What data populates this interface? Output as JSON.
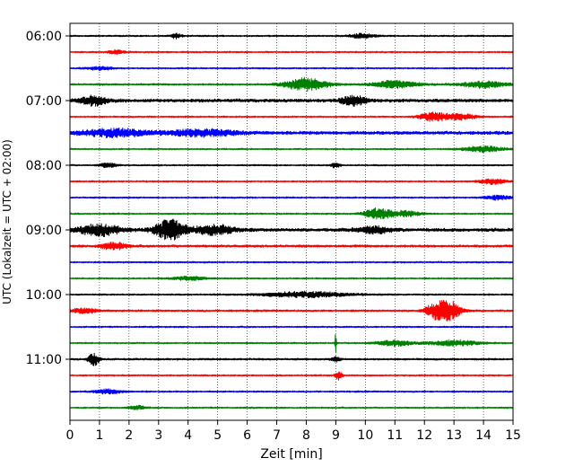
{
  "chart_data": {
    "type": "line",
    "title": "",
    "xlabel": "Zeit  [min]",
    "ylabel": "UTC (Lokalzeit = UTC + 02:00)",
    "xlim": [
      0,
      15
    ],
    "x_ticks": [
      0,
      1,
      2,
      3,
      4,
      5,
      6,
      7,
      8,
      9,
      10,
      11,
      12,
      13,
      14,
      15
    ],
    "x_tick_labels": [
      "0",
      "1",
      "2",
      "3",
      "4",
      "5",
      "6",
      "7",
      "8",
      "9",
      "10",
      "11",
      "12",
      "13",
      "14",
      "15"
    ],
    "y_tick_labels": [
      "06:00",
      "07:00",
      "08:00",
      "09:00",
      "10:00",
      "11:00"
    ],
    "y_tick_trace_index": [
      0,
      4,
      8,
      12,
      16,
      20
    ],
    "grid": "vertical-dotted",
    "trace_minutes": 15,
    "colors": [
      "#000000",
      "#ff0000",
      "#0000ff",
      "#008000"
    ],
    "series": [
      {
        "start": "06:00",
        "color": "#000000",
        "noise": 1.0,
        "events": [
          {
            "t": 3.6,
            "amp": 3,
            "w": 0.12
          },
          {
            "t": 9.9,
            "amp": 2.5,
            "w": 0.3
          }
        ]
      },
      {
        "start": "06:15",
        "color": "#ff0000",
        "noise": 1.0,
        "events": [
          {
            "t": 1.6,
            "amp": 2,
            "w": 0.2
          }
        ]
      },
      {
        "start": "06:30",
        "color": "#0000ff",
        "noise": 1.0,
        "events": [
          {
            "t": 1.0,
            "amp": 1.8,
            "w": 0.3
          }
        ]
      },
      {
        "start": "06:45",
        "color": "#008000",
        "noise": 1.2,
        "events": [
          {
            "t": 8.0,
            "amp": 7,
            "w": 0.5
          },
          {
            "t": 11.0,
            "amp": 4,
            "w": 0.5
          },
          {
            "t": 14.0,
            "amp": 3.5,
            "w": 0.5
          }
        ]
      },
      {
        "start": "07:00",
        "color": "#000000",
        "noise": 2.0,
        "events": [
          {
            "t": 0.8,
            "amp": 5,
            "w": 0.3
          },
          {
            "t": 9.6,
            "amp": 5,
            "w": 0.3
          }
        ]
      },
      {
        "start": "07:15",
        "color": "#ff0000",
        "noise": 1.0,
        "events": [
          {
            "t": 12.3,
            "amp": 5,
            "w": 0.3
          },
          {
            "t": 13.2,
            "amp": 3,
            "w": 0.4
          }
        ]
      },
      {
        "start": "07:30",
        "color": "#0000ff",
        "noise": 2.0,
        "events": [
          {
            "t": 1.5,
            "amp": 4,
            "w": 0.8
          },
          {
            "t": 4.5,
            "amp": 3.5,
            "w": 0.8
          }
        ]
      },
      {
        "start": "07:45",
        "color": "#008000",
        "noise": 1.0,
        "events": [
          {
            "t": 14.0,
            "amp": 3,
            "w": 0.5
          }
        ]
      },
      {
        "start": "08:00",
        "color": "#000000",
        "noise": 1.0,
        "events": [
          {
            "t": 1.3,
            "amp": 2.5,
            "w": 0.2
          },
          {
            "t": 9.0,
            "amp": 3,
            "w": 0.1
          }
        ]
      },
      {
        "start": "08:15",
        "color": "#ff0000",
        "noise": 1.0,
        "events": [
          {
            "t": 14.3,
            "amp": 3,
            "w": 0.3
          }
        ]
      },
      {
        "start": "08:30",
        "color": "#0000ff",
        "noise": 1.0,
        "events": [
          {
            "t": 14.5,
            "amp": 2.5,
            "w": 0.3
          }
        ]
      },
      {
        "start": "08:45",
        "color": "#008000",
        "noise": 1.0,
        "events": [
          {
            "t": 10.4,
            "amp": 6,
            "w": 0.3
          },
          {
            "t": 11.3,
            "amp": 3,
            "w": 0.4
          }
        ]
      },
      {
        "start": "09:00",
        "color": "#000000",
        "noise": 2.0,
        "events": [
          {
            "t": 1.0,
            "amp": 6,
            "w": 0.5
          },
          {
            "t": 3.4,
            "amp": 11,
            "w": 0.35
          },
          {
            "t": 4.9,
            "amp": 5,
            "w": 0.5
          },
          {
            "t": 10.3,
            "amp": 3.5,
            "w": 0.4
          }
        ]
      },
      {
        "start": "09:15",
        "color": "#ff0000",
        "noise": 1.5,
        "events": [
          {
            "t": 1.5,
            "amp": 4,
            "w": 0.3
          }
        ]
      },
      {
        "start": "09:30",
        "color": "#0000ff",
        "noise": 1.0,
        "events": []
      },
      {
        "start": "09:45",
        "color": "#008000",
        "noise": 1.0,
        "events": [
          {
            "t": 4.0,
            "amp": 2,
            "w": 0.4
          }
        ]
      },
      {
        "start": "10:00",
        "color": "#000000",
        "noise": 1.0,
        "events": [
          {
            "t": 8.0,
            "amp": 3,
            "w": 1.0
          }
        ]
      },
      {
        "start": "10:15",
        "color": "#ff0000",
        "noise": 1.2,
        "events": [
          {
            "t": 0.5,
            "amp": 3,
            "w": 0.3
          },
          {
            "t": 12.4,
            "amp": 9,
            "w": 0.25
          },
          {
            "t": 12.9,
            "amp": 9,
            "w": 0.25
          }
        ]
      },
      {
        "start": "10:30",
        "color": "#0000ff",
        "noise": 1.0,
        "events": []
      },
      {
        "start": "10:45",
        "color": "#008000",
        "noise": 1.0,
        "events": [
          {
            "t": 9.0,
            "amp": 14,
            "w": 0.02
          },
          {
            "t": 11.0,
            "amp": 3,
            "w": 0.4
          },
          {
            "t": 13.0,
            "amp": 3,
            "w": 0.6
          }
        ]
      },
      {
        "start": "11:00",
        "color": "#000000",
        "noise": 1.2,
        "events": [
          {
            "t": 0.8,
            "amp": 7,
            "w": 0.12
          },
          {
            "t": 9.0,
            "amp": 2.5,
            "w": 0.1
          }
        ]
      },
      {
        "start": "11:15",
        "color": "#ff0000",
        "noise": 1.0,
        "events": [
          {
            "t": 9.1,
            "amp": 5,
            "w": 0.08
          }
        ]
      },
      {
        "start": "11:30",
        "color": "#0000ff",
        "noise": 1.0,
        "events": [
          {
            "t": 1.3,
            "amp": 2.5,
            "w": 0.3
          }
        ]
      },
      {
        "start": "11:45",
        "color": "#008000",
        "noise": 1.0,
        "events": [
          {
            "t": 2.3,
            "amp": 2,
            "w": 0.2
          }
        ]
      }
    ]
  }
}
